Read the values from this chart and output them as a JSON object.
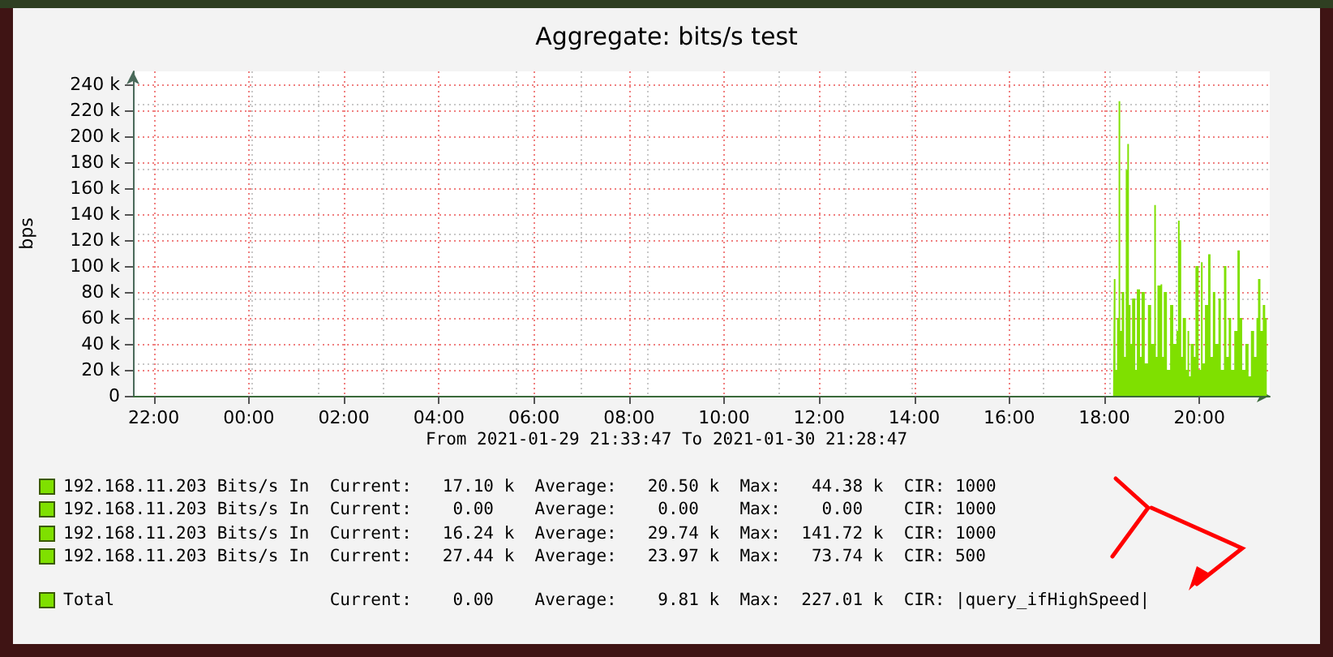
{
  "chart_data": {
    "type": "area",
    "title": "Aggregate: bits/s test",
    "ylabel": "bps",
    "xlim": [
      "2021-01-29T21:33:47",
      "2021-01-30T21:28:47"
    ],
    "xticks": [
      {
        "value": "2021-01-29T22:00",
        "label": "22:00"
      },
      {
        "value": "2021-01-30T00:00",
        "label": "00:00"
      },
      {
        "value": "2021-01-30T02:00",
        "label": "02:00"
      },
      {
        "value": "2021-01-30T04:00",
        "label": "04:00"
      },
      {
        "value": "2021-01-30T06:00",
        "label": "06:00"
      },
      {
        "value": "2021-01-30T08:00",
        "label": "08:00"
      },
      {
        "value": "2021-01-30T10:00",
        "label": "10:00"
      },
      {
        "value": "2021-01-30T12:00",
        "label": "12:00"
      },
      {
        "value": "2021-01-30T14:00",
        "label": "14:00"
      },
      {
        "value": "2021-01-30T16:00",
        "label": "16:00"
      },
      {
        "value": "2021-01-30T18:00",
        "label": "18:00"
      },
      {
        "value": "2021-01-30T20:00",
        "label": "20:00"
      }
    ],
    "ylim": [
      0,
      250
    ],
    "yticks": [
      {
        "value": 0,
        "label": "0"
      },
      {
        "value": 20,
        "label": "20 k"
      },
      {
        "value": 40,
        "label": "40 k"
      },
      {
        "value": 60,
        "label": "60 k"
      },
      {
        "value": 80,
        "label": "80 k"
      },
      {
        "value": 100,
        "label": "100 k"
      },
      {
        "value": 120,
        "label": "120 k"
      },
      {
        "value": 140,
        "label": "140 k"
      },
      {
        "value": 160,
        "label": "160 k"
      },
      {
        "value": 180,
        "label": "180 k"
      },
      {
        "value": 200,
        "label": "200 k"
      },
      {
        "value": 220,
        "label": "220 k"
      },
      {
        "value": 240,
        "label": "240 k"
      }
    ],
    "grid": true,
    "legend": "bottom",
    "x": [
      "2021-01-29T21:33:47",
      "2021-01-30T18:11",
      "2021-01-30T18:12",
      "2021-01-30T18:14",
      "2021-01-30T18:16",
      "2021-01-30T18:18",
      "2021-01-30T18:20",
      "2021-01-30T18:22",
      "2021-01-30T18:25",
      "2021-01-30T18:27",
      "2021-01-30T18:29",
      "2021-01-30T18:31",
      "2021-01-30T18:33",
      "2021-01-30T18:35",
      "2021-01-30T18:39",
      "2021-01-30T18:41",
      "2021-01-30T18:45",
      "2021-01-30T18:47",
      "2021-01-30T18:51",
      "2021-01-30T18:55",
      "2021-01-30T18:59",
      "2021-01-30T19:03",
      "2021-01-30T19:05",
      "2021-01-30T19:07",
      "2021-01-30T19:11",
      "2021-01-30T19:13",
      "2021-01-30T19:15",
      "2021-01-30T19:19",
      "2021-01-30T19:23",
      "2021-01-30T19:27",
      "2021-01-30T19:31",
      "2021-01-30T19:33",
      "2021-01-30T19:35",
      "2021-01-30T19:37",
      "2021-01-30T19:39",
      "2021-01-30T19:43",
      "2021-01-30T19:45",
      "2021-01-30T19:47",
      "2021-01-30T19:49",
      "2021-01-30T19:53",
      "2021-01-30T19:55",
      "2021-01-30T19:59",
      "2021-01-30T20:02",
      "2021-01-30T20:04",
      "2021-01-30T20:07",
      "2021-01-30T20:11",
      "2021-01-30T20:14",
      "2021-01-30T20:17",
      "2021-01-30T20:20",
      "2021-01-30T20:24",
      "2021-01-30T20:27",
      "2021-01-30T20:31",
      "2021-01-30T20:34",
      "2021-01-30T20:37",
      "2021-01-30T20:40",
      "2021-01-30T20:44",
      "2021-01-30T20:48",
      "2021-01-30T20:51",
      "2021-01-30T20:54",
      "2021-01-30T20:58",
      "2021-01-30T21:02",
      "2021-01-30T21:05",
      "2021-01-30T21:09",
      "2021-01-30T21:12",
      "2021-01-30T21:14",
      "2021-01-30T21:17",
      "2021-01-30T21:20",
      "2021-01-30T21:23",
      "2021-01-30T21:25"
    ],
    "series": [
      {
        "name": "Total",
        "color": "#7fe000",
        "values": [
          0,
          0,
          90,
          20,
          60,
          227,
          50,
          80,
          30,
          174,
          194,
          70,
          40,
          75,
          20,
          82,
          30,
          80,
          25,
          70,
          40,
          147,
          30,
          85,
          86,
          30,
          80,
          20,
          70,
          40,
          50,
          135,
          120,
          30,
          60,
          20,
          50,
          15,
          40,
          30,
          100,
          20,
          103,
          25,
          70,
          109,
          30,
          80,
          40,
          75,
          20,
          100,
          30,
          60,
          20,
          50,
          112,
          60,
          20,
          40,
          15,
          50,
          30,
          60,
          90,
          50,
          70,
          60,
          0
        ]
      }
    ],
    "annotations": [
      "From 2021-01-29 21:33:47 To 2021-01-30 21:28:47",
      "192.168.11.203 Bits/s In  Current:   17.10 k  Average:   20.50 k  Max:   44.38 k  CIR: 1000",
      "192.168.11.203 Bits/s In  Current:    0.00    Average:    0.00    Max:    0.00    CIR: 1000",
      "192.168.11.203 Bits/s In  Current:   16.24 k  Average:   29.74 k  Max:  141.72 k  CIR: 1000",
      "192.168.11.203 Bits/s In  Current:   27.44 k  Average:   23.97 k  Max:   73.74 k  CIR: 500",
      "Current:    0.00    Average:    9.81 k  Max:  227.01 k  CIR: |query_ifHighSpeed|"
    ]
  }
}
